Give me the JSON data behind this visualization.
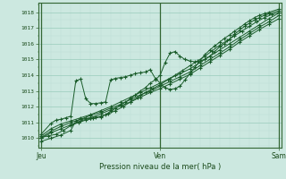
{
  "title": "Pression niveau de la mer( hPa )",
  "ylabel_ticks": [
    1010,
    1011,
    1012,
    1013,
    1014,
    1015,
    1016,
    1017,
    1018
  ],
  "xlabels": [
    "Jeu",
    "Ven",
    "Sam"
  ],
  "xtick_positions": [
    0,
    48,
    96
  ],
  "x_total": 96,
  "ylim": [
    1009.4,
    1018.6
  ],
  "xlim": [
    -1,
    97
  ],
  "bg_color": "#cce8e0",
  "grid_color_major": "#99ccbb",
  "grid_color_minor": "#bbddd4",
  "line_color": "#1a5c2a",
  "lines": [
    [
      0,
      1010.05,
      3,
      1010.15,
      6,
      1010.25,
      9,
      1010.5,
      12,
      1010.8,
      15,
      1011.0,
      18,
      1011.15,
      21,
      1011.25,
      24,
      1011.35,
      27,
      1011.55,
      30,
      1011.75,
      33,
      1012.0,
      36,
      1012.3,
      39,
      1012.6,
      42,
      1012.9,
      45,
      1013.15,
      48,
      1013.4,
      51,
      1013.7,
      54,
      1014.0,
      57,
      1014.3,
      60,
      1014.6,
      63,
      1014.9,
      66,
      1015.2,
      69,
      1015.55,
      72,
      1015.9,
      75,
      1016.2,
      78,
      1016.5,
      81,
      1016.8,
      84,
      1017.1,
      87,
      1017.4,
      90,
      1017.65,
      93,
      1017.85,
      96,
      1018.0
    ],
    [
      0,
      1009.8,
      4,
      1010.0,
      8,
      1010.2,
      12,
      1010.5,
      14,
      1011.1,
      16,
      1011.2,
      18,
      1011.25,
      20,
      1011.3,
      22,
      1011.35,
      24,
      1011.4,
      26,
      1011.5,
      28,
      1011.7,
      30,
      1011.9,
      32,
      1012.1,
      34,
      1012.3,
      36,
      1012.5,
      38,
      1012.75,
      40,
      1013.0,
      42,
      1013.2,
      44,
      1013.5,
      46,
      1013.7,
      48,
      1014.0,
      50,
      1014.8,
      52,
      1015.4,
      54,
      1015.5,
      56,
      1015.2,
      58,
      1015.0,
      60,
      1014.9,
      62,
      1014.85,
      64,
      1014.9,
      66,
      1015.0,
      68,
      1015.2,
      70,
      1015.5,
      72,
      1015.8,
      74,
      1016.0,
      76,
      1016.3,
      78,
      1016.6,
      80,
      1016.85,
      82,
      1017.1,
      84,
      1017.3,
      86,
      1017.5,
      88,
      1017.65,
      90,
      1017.8,
      92,
      1017.9,
      96,
      1018.1
    ],
    [
      0,
      1010.25,
      4,
      1010.95,
      6,
      1011.15,
      8,
      1011.2,
      10,
      1011.3,
      12,
      1011.4,
      14,
      1013.65,
      16,
      1013.75,
      18,
      1012.5,
      20,
      1012.2,
      22,
      1012.2,
      24,
      1012.25,
      26,
      1012.3,
      28,
      1013.7,
      30,
      1013.8,
      32,
      1013.85,
      34,
      1013.9,
      36,
      1014.0,
      38,
      1014.1,
      40,
      1014.15,
      42,
      1014.2,
      44,
      1014.35,
      46,
      1013.8,
      48,
      1013.5,
      50,
      1013.2,
      52,
      1013.1,
      54,
      1013.15,
      56,
      1013.3,
      58,
      1013.7,
      60,
      1014.1,
      62,
      1014.5,
      64,
      1014.9,
      66,
      1015.3,
      68,
      1015.6,
      70,
      1015.85,
      72,
      1016.1,
      74,
      1016.35,
      76,
      1016.55,
      78,
      1016.8,
      80,
      1017.0,
      82,
      1017.25,
      84,
      1017.45,
      86,
      1017.65,
      88,
      1017.8,
      90,
      1017.9,
      92,
      1018.0,
      96,
      1018.2
    ],
    [
      0,
      1010.15,
      4,
      1010.6,
      8,
      1010.9,
      12,
      1011.1,
      16,
      1011.3,
      20,
      1011.5,
      24,
      1011.75,
      28,
      1012.0,
      32,
      1012.3,
      36,
      1012.6,
      40,
      1012.9,
      44,
      1013.2,
      48,
      1013.5,
      52,
      1013.8,
      56,
      1014.1,
      60,
      1014.4,
      64,
      1014.8,
      68,
      1015.2,
      72,
      1015.6,
      76,
      1016.0,
      80,
      1016.4,
      84,
      1016.8,
      88,
      1017.2,
      92,
      1017.6,
      96,
      1017.95
    ],
    [
      0,
      1010.05,
      4,
      1010.45,
      8,
      1010.75,
      12,
      1011.0,
      16,
      1011.2,
      20,
      1011.45,
      24,
      1011.65,
      28,
      1011.9,
      32,
      1012.15,
      36,
      1012.45,
      40,
      1012.75,
      44,
      1013.0,
      48,
      1013.3,
      52,
      1013.6,
      56,
      1013.9,
      60,
      1014.2,
      64,
      1014.6,
      68,
      1015.0,
      72,
      1015.4,
      76,
      1015.8,
      80,
      1016.25,
      84,
      1016.65,
      88,
      1017.05,
      92,
      1017.4,
      96,
      1017.8
    ],
    [
      0,
      1010.0,
      4,
      1010.35,
      8,
      1010.6,
      12,
      1010.85,
      16,
      1011.1,
      20,
      1011.3,
      24,
      1011.55,
      28,
      1011.8,
      32,
      1012.05,
      36,
      1012.3,
      40,
      1012.6,
      44,
      1012.9,
      48,
      1013.15,
      52,
      1013.45,
      56,
      1013.75,
      60,
      1014.05,
      64,
      1014.45,
      68,
      1014.85,
      72,
      1015.25,
      76,
      1015.65,
      80,
      1016.1,
      84,
      1016.5,
      88,
      1016.9,
      92,
      1017.25,
      96,
      1017.6
    ]
  ]
}
